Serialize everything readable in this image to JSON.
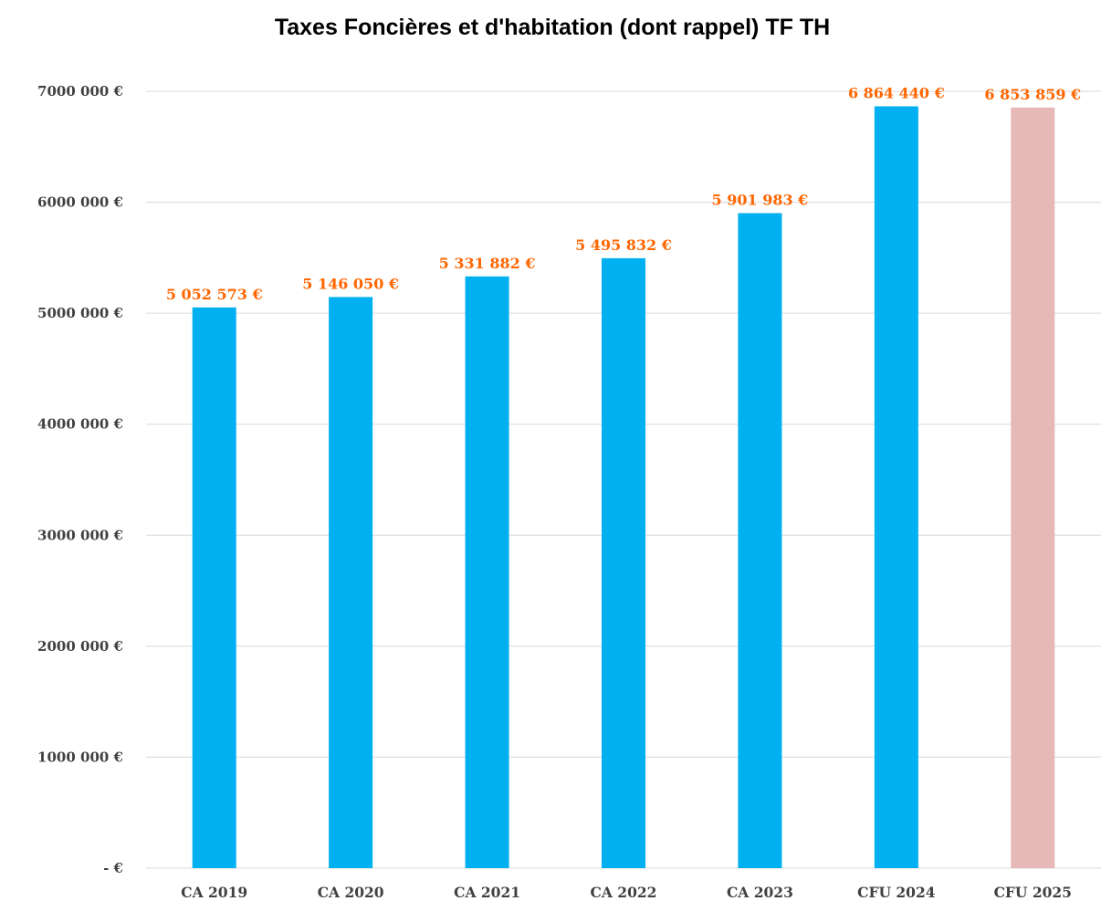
{
  "chart_data": {
    "type": "bar",
    "title": "Taxes Foncières et d'habitation (dont rappel) TF TH",
    "categories": [
      "CA 2019",
      "CA 2020",
      "CA 2021",
      "CA 2022",
      "CA 2023",
      "CFU 2024",
      "CFU 2025"
    ],
    "values": [
      5052573,
      5146050,
      5331882,
      5495832,
      5901983,
      6864440,
      6853859
    ],
    "data_labels": [
      "5 052 573 €",
      "5 146 050 €",
      "5 331 882 €",
      "5 495 832 €",
      "5 901 983 €",
      "6 864 440 €",
      "6 853 859 €"
    ],
    "bar_colors": [
      "#00b0f0",
      "#00b0f0",
      "#00b0f0",
      "#00b0f0",
      "#00b0f0",
      "#00b0f0",
      "#e6b8b7"
    ],
    "label_color": "#ff6600",
    "ylim": [
      0,
      7000000
    ],
    "yticks": [
      {
        "value": 0,
        "label": "-   €"
      },
      {
        "value": 1000000,
        "label": "1000 000 €"
      },
      {
        "value": 2000000,
        "label": "2000 000 €"
      },
      {
        "value": 3000000,
        "label": "3000 000 €"
      },
      {
        "value": 4000000,
        "label": "4000 000 €"
      },
      {
        "value": 5000000,
        "label": "5000 000 €"
      },
      {
        "value": 6000000,
        "label": "6000 000 €"
      },
      {
        "value": 7000000,
        "label": "7000 000 €"
      }
    ],
    "grid": true,
    "legend": "none",
    "xlabel": "",
    "ylabel": ""
  }
}
